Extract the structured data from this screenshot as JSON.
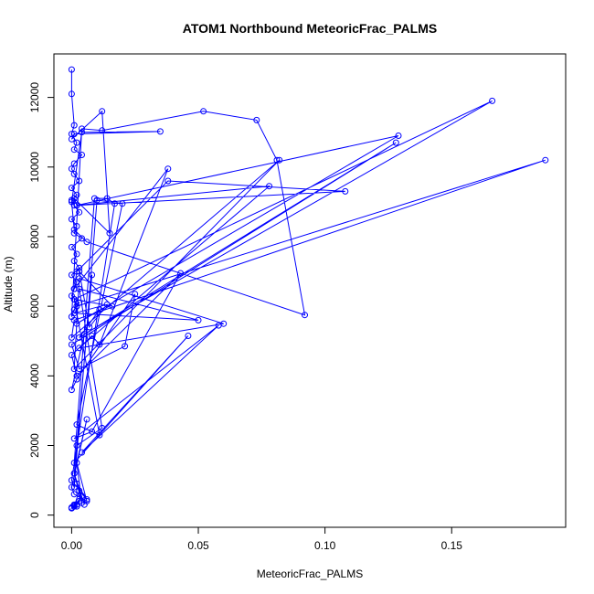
{
  "chart_data": {
    "type": "line",
    "title": "ATOM1 Northbound MeteoricFrac_PALMS",
    "xlabel": "MeteoricFrac_PALMS",
    "ylabel": "Altitude (m)",
    "xlim": [
      -0.007,
      0.195
    ],
    "ylim": [
      -350,
      13250
    ],
    "xticks": [
      0.0,
      0.05,
      0.1,
      0.15
    ],
    "xtick_labels": [
      "0.00",
      "0.05",
      "0.10",
      "0.15"
    ],
    "yticks": [
      0,
      2000,
      4000,
      6000,
      8000,
      10000,
      12000
    ],
    "ytick_labels": [
      "0",
      "2000",
      "4000",
      "6000",
      "8000",
      "10000",
      "12000"
    ],
    "grid": false,
    "marker": "open-circle",
    "color": "#0000ff",
    "series": [
      {
        "x": [
          0.0,
          0.0,
          0.001,
          0.0,
          0.002,
          0.001,
          0.004,
          0.001,
          0.0,
          0.001,
          0.003,
          0.0,
          0.002,
          0.0,
          0.001,
          0.003,
          0.0,
          0.002,
          0.001,
          0.004,
          0.0,
          0.002,
          0.001,
          0.003,
          0.0,
          0.002,
          0.001,
          0.0,
          0.003,
          0.001,
          0.0,
          0.004,
          0.012,
          0.052,
          0.073,
          0.081,
          0.092,
          0.006,
          0.001,
          0.0,
          0.004,
          0.035,
          0.001,
          0.0,
          0.012,
          0.015,
          0.001,
          0.002,
          0.129,
          0.002,
          0.011,
          0.003,
          0.128,
          0.0,
          0.003,
          0.021,
          0.025,
          0.002,
          0.0,
          0.005,
          0.166,
          0.001,
          0.002,
          0.187,
          0.001,
          0.0,
          0.082,
          0.001,
          0.003,
          0.06,
          0.003,
          0.078,
          0.002,
          0.108,
          0.038,
          0.002,
          0.001,
          0.038,
          0.011,
          0.008,
          0.0,
          0.002,
          0.043,
          0.008,
          0.001,
          0.058,
          0.004,
          0.046,
          0.001,
          0.009,
          0.014,
          0.017,
          0.0,
          0.001,
          0.01,
          0.02,
          0.002,
          0.011,
          0.001,
          0.016,
          0.003,
          0.007,
          0.014,
          0.001,
          0.05,
          0.003,
          0.012,
          0.002,
          0.008,
          0.001,
          0.006,
          0.0,
          0.001,
          0.006,
          0.002,
          0.004,
          0.001,
          0.005,
          0.002,
          0.006,
          0.003,
          0.001,
          0.004,
          0.002,
          0.0,
          0.003,
          0.001,
          0.002,
          0.0,
          0.001,
          0.0
        ],
        "y": [
          12800,
          12100,
          11200,
          10950,
          10700,
          10500,
          10350,
          10100,
          9950,
          9800,
          9600,
          9400,
          9200,
          9050,
          8900,
          8700,
          8500,
          8300,
          8100,
          7950,
          7700,
          7500,
          7300,
          7100,
          6900,
          6700,
          6500,
          6300,
          6100,
          5900,
          5700,
          11100,
          11050,
          11600,
          11350,
          10200,
          5750,
          7850,
          8200,
          9000,
          11000,
          11020,
          10950,
          10800,
          11600,
          8100,
          9100,
          8900,
          10900,
          5500,
          5900,
          5100,
          10700,
          4900,
          4200,
          4850,
          6350,
          3900,
          3600,
          5200,
          11900,
          6200,
          6000,
          10200,
          5600,
          5100,
          10200,
          4200,
          6800,
          5500,
          4800,
          9450,
          8900,
          9300,
          9600,
          7000,
          6500,
          9950,
          4900,
          5150,
          4600,
          4000,
          6950,
          2400,
          2200,
          5450,
          1800,
          5150,
          1500,
          9100,
          9100,
          8950,
          1000,
          800,
          9050,
          8950,
          2600,
          2300,
          6200,
          6000,
          7000,
          5400,
          6050,
          5800,
          5600,
          6500,
          2500,
          2000,
          6900,
          1200,
          2750,
          800,
          600,
          400,
          1500,
          350,
          1200,
          300,
          900,
          450,
          700,
          250,
          550,
          300,
          200,
          400,
          280,
          250,
          200,
          300,
          220
        ]
      }
    ]
  }
}
